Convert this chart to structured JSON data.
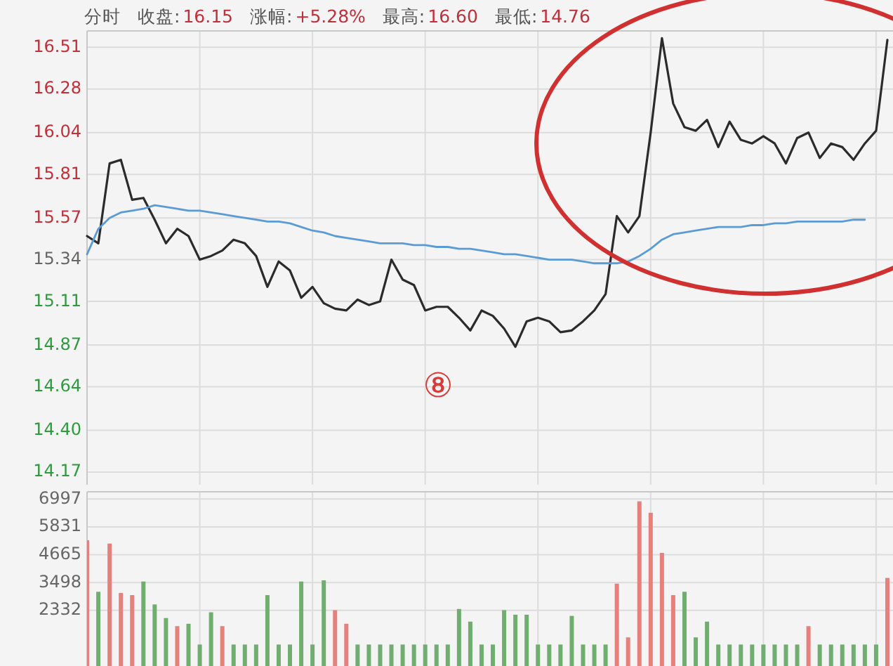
{
  "chart_data": [
    {
      "type": "line",
      "title": "分时 收盘:16.15 涨幅:+5.28% 最高:16.60 最低:14.76",
      "annotations": [
        "⑧"
      ],
      "categories": [
        null,
        null,
        null,
        null,
        null,
        null,
        null,
        null,
        null,
        null,
        null,
        null,
        null,
        null,
        null,
        null,
        null,
        null,
        null,
        null,
        null,
        null,
        null,
        null,
        null,
        null,
        null,
        null,
        null,
        null,
        null,
        null,
        null,
        null,
        null,
        null,
        null,
        null,
        null,
        null,
        null,
        null,
        null,
        null,
        null,
        null,
        null,
        null,
        null,
        null,
        null,
        null,
        null,
        null,
        null,
        null,
        null,
        null,
        null,
        null,
        null,
        null,
        null,
        null,
        null,
        null,
        null,
        null,
        null,
        null,
        null,
        null
      ],
      "series": [
        {
          "color": "#2b2b2b",
          "values": [
            15.47,
            15.43,
            15.87,
            15.89,
            15.67,
            15.68,
            15.56,
            15.43,
            15.51,
            15.47,
            15.34,
            15.36,
            15.39,
            15.45,
            15.43,
            15.36,
            15.19,
            15.33,
            15.28,
            15.13,
            15.19,
            15.1,
            15.07,
            15.06,
            15.12,
            15.09,
            15.11,
            15.34,
            15.23,
            15.2,
            15.06,
            15.08,
            15.08,
            15.02,
            14.95,
            15.06,
            15.03,
            14.96,
            14.86,
            15.0,
            15.02,
            15.0,
            14.94,
            14.95,
            15.0,
            15.06,
            15.15,
            15.58,
            15.49,
            15.58,
            16.04,
            16.56,
            16.2,
            16.07,
            16.05,
            16.11,
            15.96,
            16.1,
            16.0,
            15.98,
            16.02,
            15.98,
            15.87,
            16.01,
            16.04,
            15.9,
            15.98,
            15.96,
            15.89,
            15.98,
            16.05,
            16.55
          ]
        },
        {
          "color": "#5b9bd5",
          "values": [
            15.37,
            15.51,
            15.57,
            15.6,
            15.61,
            15.62,
            15.64,
            15.63,
            15.62,
            15.61,
            15.61,
            15.6,
            15.59,
            15.58,
            15.57,
            15.56,
            15.55,
            15.55,
            15.54,
            15.52,
            15.5,
            15.49,
            15.47,
            15.46,
            15.45,
            15.44,
            15.43,
            15.43,
            15.43,
            15.42,
            15.42,
            15.41,
            15.41,
            15.4,
            15.4,
            15.39,
            15.38,
            15.37,
            15.37,
            15.36,
            15.35,
            15.34,
            15.34,
            15.34,
            15.33,
            15.32,
            15.32,
            15.32,
            15.33,
            15.36,
            15.4,
            15.45,
            15.48,
            15.49,
            15.5,
            15.51,
            15.52,
            15.52,
            15.52,
            15.53,
            15.53,
            15.54,
            15.54,
            15.55,
            15.55,
            15.55,
            15.55,
            15.55,
            15.56,
            15.56,
            null,
            null
          ]
        }
      ],
      "ylim": [
        14.1,
        16.6
      ],
      "yticks": [
        14.17,
        {
          "value": 14.4,
          "label": "14.40"
        },
        14.64,
        14.87,
        15.11,
        15.34,
        15.57,
        15.81,
        16.04,
        16.28,
        16.51
      ],
      "grid": true
    },
    {
      "type": "bar",
      "categories": [
        null,
        null,
        null,
        null,
        null,
        null,
        null,
        null,
        null,
        null,
        null,
        null,
        null,
        null,
        null,
        null,
        null,
        null,
        null,
        null,
        null,
        null,
        null,
        null,
        null,
        null,
        null,
        null,
        null,
        null,
        null,
        null,
        null,
        null,
        null,
        null,
        null,
        null,
        null,
        null,
        null,
        null,
        null,
        null,
        null,
        null,
        null,
        null,
        null,
        null,
        null,
        null,
        null,
        null,
        null,
        null,
        null,
        null,
        null,
        null,
        null,
        null,
        null,
        null,
        null,
        null,
        null,
        null,
        null,
        null,
        null,
        null
      ],
      "values": [
        5270,
        3110,
        5130,
        3060,
        2970,
        3540,
        2580,
        2010,
        1670,
        1770,
        900,
        2250,
        1670,
        900,
        900,
        900,
        2970,
        900,
        900,
        3540,
        900,
        3590,
        2340,
        1770,
        900,
        900,
        900,
        900,
        900,
        900,
        900,
        900,
        900,
        2390,
        1860,
        900,
        900,
        2340,
        2150,
        2150,
        900,
        900,
        900,
        2100,
        900,
        900,
        900,
        3450,
        1200,
        6900,
        6420,
        4740,
        2970,
        3110,
        1200,
        1860,
        900,
        900,
        900,
        900,
        900,
        900,
        900,
        900,
        1670,
        900,
        900,
        900,
        900,
        900,
        900,
        3690
      ],
      "colors": [
        "#e5807c",
        "#6fae6f",
        "#e5807c",
        "#e5807c",
        "#e5807c",
        "#6fae6f",
        "#6fae6f",
        "#6fae6f",
        "#e5807c",
        "#6fae6f",
        "#6fae6f",
        "#6fae6f",
        "#e5807c",
        "#6fae6f",
        "#6fae6f",
        "#6fae6f",
        "#6fae6f",
        "#6fae6f",
        "#6fae6f",
        "#6fae6f",
        "#6fae6f",
        "#6fae6f",
        "#e5807c",
        "#e5807c",
        "#6fae6f",
        "#6fae6f",
        "#6fae6f",
        "#6fae6f",
        "#6fae6f",
        "#6fae6f",
        "#6fae6f",
        "#6fae6f",
        "#6fae6f",
        "#6fae6f",
        "#6fae6f",
        "#6fae6f",
        "#6fae6f",
        "#6fae6f",
        "#6fae6f",
        "#6fae6f",
        "#6fae6f",
        "#6fae6f",
        "#6fae6f",
        "#6fae6f",
        "#6fae6f",
        "#6fae6f",
        "#6fae6f",
        "#e5807c",
        "#e5807c",
        "#e5807c",
        "#e5807c",
        "#e5807c",
        "#e5807c",
        "#6fae6f",
        "#6fae6f",
        "#6fae6f",
        "#6fae6f",
        "#6fae6f",
        "#6fae6f",
        "#6fae6f",
        "#6fae6f",
        "#6fae6f",
        "#6fae6f",
        "#6fae6f",
        "#e5807c",
        "#6fae6f",
        "#6fae6f",
        "#6fae6f",
        "#6fae6f",
        "#6fae6f",
        "#6fae6f",
        "#e5807c"
      ],
      "ylim": [
        0,
        7300
      ],
      "yticks": [
        2332,
        3498,
        4665,
        5831,
        6997
      ],
      "grid": true
    }
  ]
}
